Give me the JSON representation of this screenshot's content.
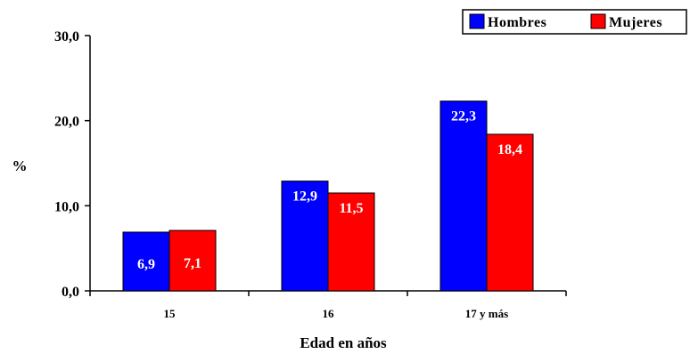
{
  "chart_data": {
    "type": "bar",
    "categories": [
      "15",
      "16",
      "17 y más"
    ],
    "series": [
      {
        "name": "Hombres",
        "color": "#0000ff",
        "values": [
          6.9,
          12.9,
          22.3
        ],
        "labels": [
          "6,9",
          "12,9",
          "22,3"
        ]
      },
      {
        "name": "Mujeres",
        "color": "#ff0000",
        "values": [
          7.1,
          11.5,
          18.4
        ],
        "labels": [
          "7,1",
          "11,5",
          "18,4"
        ]
      }
    ],
    "xlabel": "Edad en años",
    "ylabel": "%",
    "ylim": [
      0,
      30
    ],
    "yticks": [
      0,
      10,
      20,
      30
    ],
    "ytick_labels": [
      "0,0",
      "10,0",
      "20,0",
      "30,0"
    ],
    "grid": false,
    "legend_position": "top-right"
  }
}
